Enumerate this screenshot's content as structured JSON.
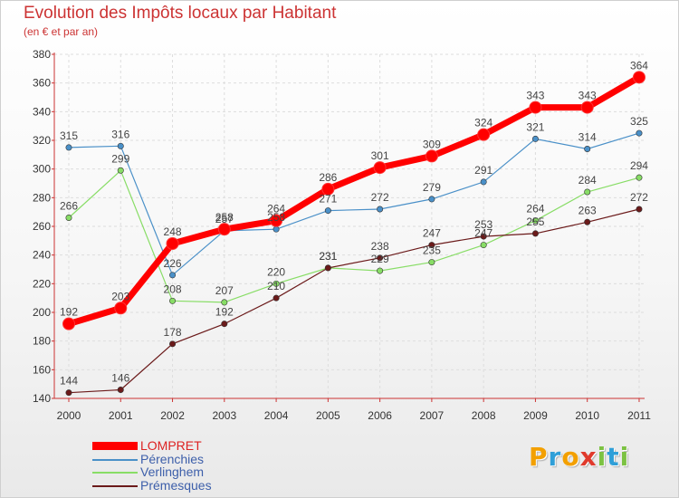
{
  "header": {
    "title": "Evolution des Impôts locaux par Habitant",
    "subtitle": "(en € et par an)"
  },
  "brand": {
    "letters": [
      {
        "char": "P",
        "color": "#f3a000"
      },
      {
        "char": "r",
        "color": "#2f9fd8"
      },
      {
        "char": "o",
        "color": "#f3a000"
      },
      {
        "char": "x",
        "color": "#e03a2c"
      },
      {
        "char": "i",
        "color": "#7cc242"
      },
      {
        "char": "t",
        "color": "#2f9fd8"
      },
      {
        "char": "i",
        "color": "#7cc242"
      }
    ]
  },
  "chart_data": {
    "type": "line",
    "x": [
      "2000",
      "2001",
      "2002",
      "2003",
      "2004",
      "2005",
      "2006",
      "2007",
      "2008",
      "2009",
      "2010",
      "2011"
    ],
    "ylim": [
      140,
      380
    ],
    "yticks": [
      140,
      160,
      180,
      200,
      220,
      240,
      260,
      280,
      300,
      320,
      340,
      360,
      380
    ],
    "grid": true,
    "legend_position": "bottom-left",
    "series": [
      {
        "name": "LOMPRET",
        "color": "#ff0000",
        "emphasis": true,
        "values": [
          192,
          203,
          248,
          258,
          264,
          286,
          301,
          309,
          324,
          343,
          343,
          364
        ]
      },
      {
        "name": "Pérenchies",
        "color": "#4a90c8",
        "values": [
          315,
          316,
          226,
          257,
          258,
          271,
          272,
          279,
          291,
          321,
          314,
          325
        ]
      },
      {
        "name": "Verlinghem",
        "color": "#88dd66",
        "values": [
          266,
          299,
          208,
          207,
          220,
          231,
          229,
          235,
          247,
          264,
          284,
          294
        ]
      },
      {
        "name": "Prémesques",
        "color": "#6b1a1a",
        "values": [
          144,
          146,
          178,
          192,
          210,
          231,
          238,
          247,
          253,
          255,
          263,
          272
        ]
      }
    ]
  }
}
